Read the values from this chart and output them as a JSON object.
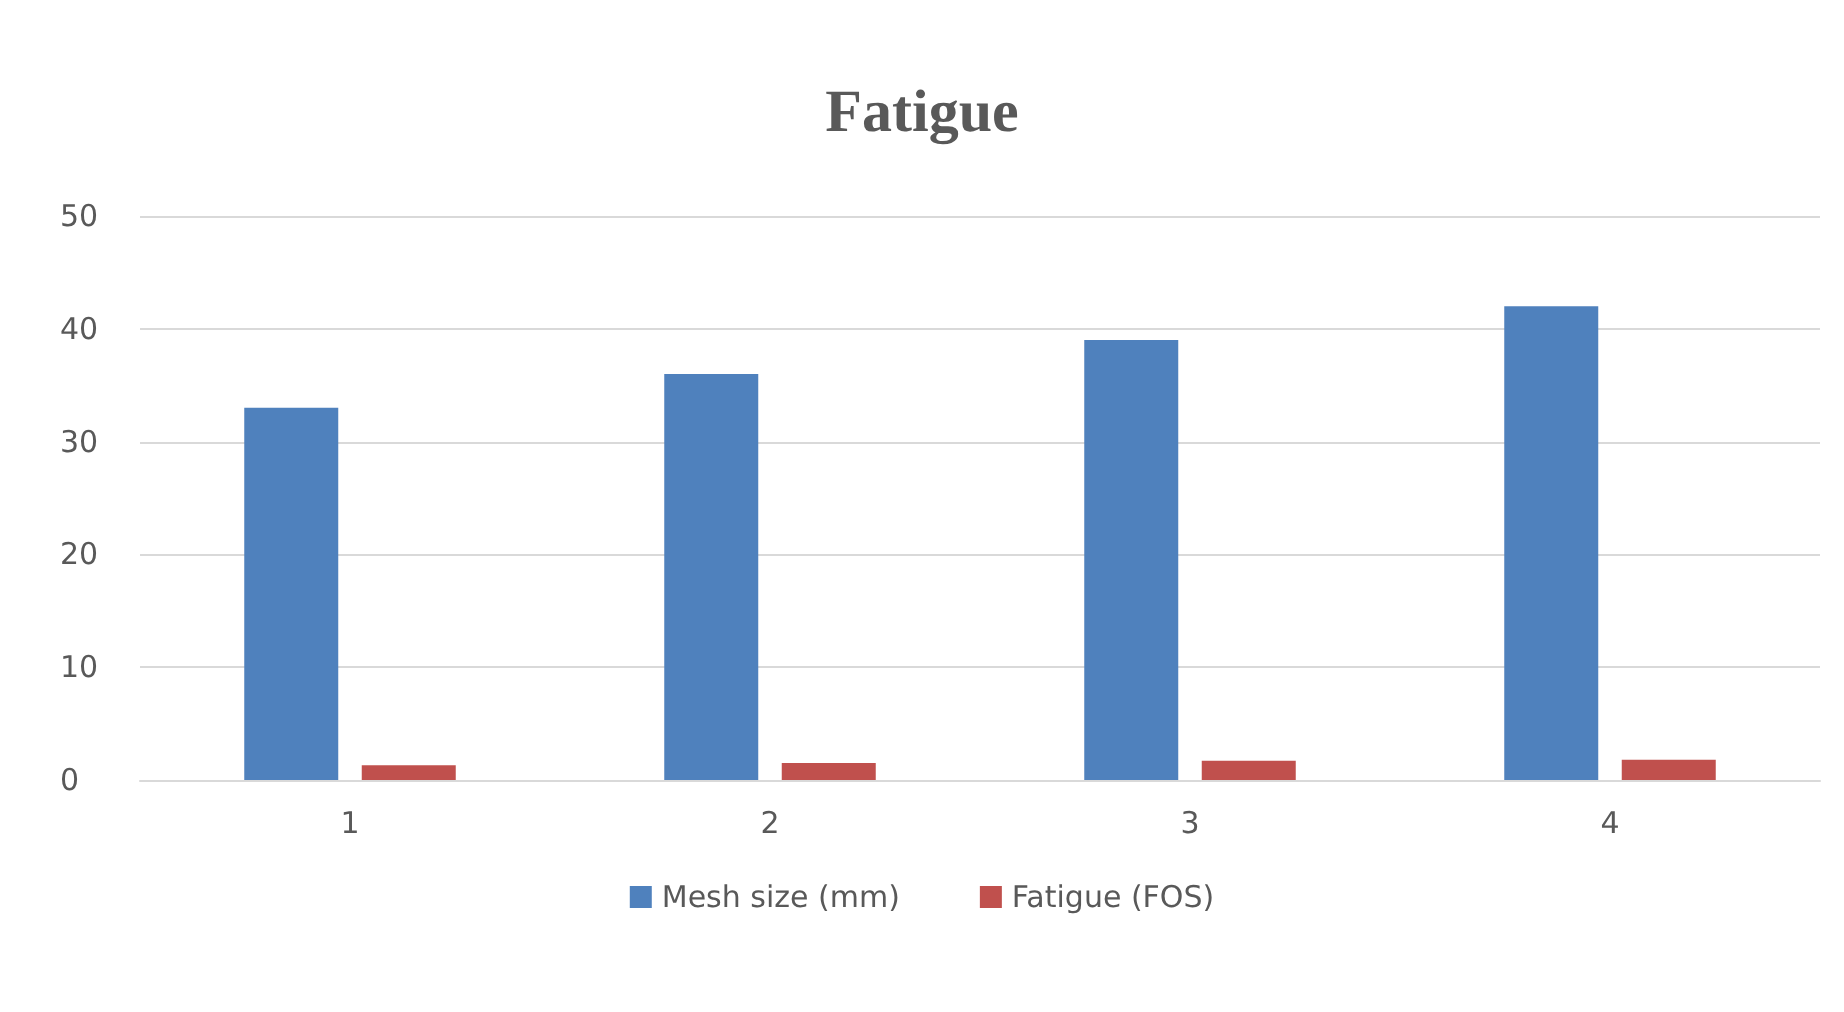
{
  "chart_data": {
    "type": "bar",
    "title": "Fatigue",
    "categories": [
      "1",
      "2",
      "3",
      "4"
    ],
    "series": [
      {
        "name": "Mesh size (mm)",
        "color": "#4f81bd",
        "values": [
          33,
          36,
          39,
          42
        ]
      },
      {
        "name": "Fatigue (FOS)",
        "color": "#c0504d",
        "values": [
          1.3,
          1.5,
          1.7,
          1.8
        ]
      }
    ],
    "ylim": [
      0,
      50
    ],
    "yticks": [
      0,
      10,
      20,
      30,
      40,
      50
    ],
    "grid": "y",
    "legend": "bottom"
  }
}
